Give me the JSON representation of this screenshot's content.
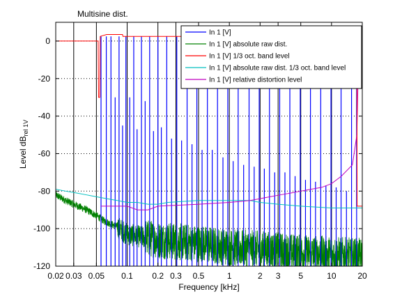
{
  "chart_data": {
    "type": "line",
    "title": "Multisine dist.",
    "xlabel": "Frequency [kHz]",
    "ylabel_main": "Level dB",
    "ylabel_sub": "rel 1V",
    "xscale": "log",
    "xlim": [
      0.02,
      20
    ],
    "ylim": [
      -120,
      10
    ],
    "grid": true,
    "legend_position": "top-right",
    "x_ticks": [
      {
        "value": 0.02,
        "label": "0.02"
      },
      {
        "value": 0.03,
        "label": "0.03"
      },
      {
        "value": 0.05,
        "label": "0.05"
      },
      {
        "value": 0.1,
        "label": "0.1"
      },
      {
        "value": 0.2,
        "label": "0.2"
      },
      {
        "value": 0.3,
        "label": "0.3"
      },
      {
        "value": 0.5,
        "label": "0.5"
      },
      {
        "value": 1,
        "label": "1"
      },
      {
        "value": 2,
        "label": "2"
      },
      {
        "value": 3,
        "label": "3"
      },
      {
        "value": 5,
        "label": "5"
      },
      {
        "value": 10,
        "label": "10"
      },
      {
        "value": 20,
        "label": "20"
      }
    ],
    "y_ticks": [
      {
        "value": 0,
        "label": "0"
      },
      {
        "value": -20,
        "label": "-20"
      },
      {
        "value": -40,
        "label": "-40"
      },
      {
        "value": -60,
        "label": "-60"
      },
      {
        "value": -80,
        "label": "-80"
      },
      {
        "value": -100,
        "label": "-100"
      },
      {
        "value": -120,
        "label": "-120"
      }
    ],
    "series": [
      {
        "name": "In 1 [V]",
        "color": "#0000ff",
        "kind": "spikes",
        "baseline": -120,
        "points": [
          [
            0.0555,
            2.5
          ],
          [
            0.0625,
            2.5
          ],
          [
            0.0694,
            2.5
          ],
          [
            0.0763,
            -30
          ],
          [
            0.0833,
            2.5
          ],
          [
            0.0902,
            -45
          ],
          [
            0.0972,
            2.5
          ],
          [
            0.106,
            -30
          ],
          [
            0.116,
            2.5
          ],
          [
            0.125,
            -47
          ],
          [
            0.138,
            2.5
          ],
          [
            0.15,
            -32
          ],
          [
            0.166,
            2.5
          ],
          [
            0.181,
            -48
          ],
          [
            0.2,
            2.5
          ],
          [
            0.216,
            -46
          ],
          [
            0.244,
            2.5
          ],
          [
            0.272,
            -52
          ],
          [
            0.306,
            2.5
          ],
          [
            0.341,
            -53
          ],
          [
            0.386,
            2.5
          ],
          [
            0.431,
            -55
          ],
          [
            0.481,
            2.5
          ],
          [
            0.541,
            -58
          ],
          [
            0.61,
            2.5
          ],
          [
            0.68,
            -58
          ],
          [
            0.766,
            2.5
          ],
          [
            0.866,
            -62
          ],
          [
            0.966,
            2.5
          ],
          [
            1.09,
            -64
          ],
          [
            1.22,
            2.5
          ],
          [
            1.38,
            -66
          ],
          [
            1.56,
            2.5
          ],
          [
            1.75,
            -67
          ],
          [
            1.96,
            2.5
          ],
          [
            2.2,
            -68
          ],
          [
            2.47,
            2.5
          ],
          [
            2.78,
            -70
          ],
          [
            3.11,
            2.5
          ],
          [
            3.5,
            -70
          ],
          [
            3.91,
            2.5
          ],
          [
            4.4,
            -72
          ],
          [
            4.94,
            2.5
          ],
          [
            5.56,
            -74
          ],
          [
            6.22,
            2.5
          ],
          [
            6.97,
            -75
          ],
          [
            7.84,
            2.5
          ],
          [
            8.81,
            -77
          ],
          [
            9.88,
            2.5
          ],
          [
            11.1,
            -78
          ],
          [
            12.4,
            2.5
          ],
          [
            14.0,
            -80
          ],
          [
            15.7,
            2.5
          ],
          [
            17.6,
            2.5
          ]
        ]
      },
      {
        "name": "In 1 [V] absolute raw dist.",
        "color": "#008000",
        "kind": "noise",
        "anchors": [
          [
            0.02,
            -82
          ],
          [
            0.025,
            -85
          ],
          [
            0.03,
            -87
          ],
          [
            0.04,
            -90
          ],
          [
            0.05,
            -93
          ],
          [
            0.06,
            -96
          ],
          [
            0.08,
            -99
          ],
          [
            0.1,
            -103
          ],
          [
            0.2,
            -106
          ],
          [
            0.5,
            -108
          ],
          [
            1,
            -110
          ],
          [
            2,
            -111
          ],
          [
            5,
            -113
          ],
          [
            10,
            -114
          ],
          [
            20,
            -115
          ]
        ]
      },
      {
        "name": "In 1 [V] 1/3 oct. band level",
        "color": "#ff0000",
        "kind": "line",
        "points": [
          [
            0.02,
            0
          ],
          [
            0.052,
            0
          ],
          [
            0.0525,
            -30
          ],
          [
            0.054,
            -30
          ],
          [
            0.0545,
            2.5
          ],
          [
            0.063,
            3.5
          ],
          [
            0.09,
            3.5
          ],
          [
            0.091,
            2.5
          ],
          [
            1,
            2.5
          ],
          [
            5,
            2.7
          ],
          [
            17.7,
            2.7
          ],
          [
            17.8,
            -88
          ],
          [
            20,
            -88
          ]
        ]
      },
      {
        "name": "In 1 [V] absolute raw dist. 1/3 oct. band level",
        "color": "#00bfbf",
        "kind": "line",
        "points": [
          [
            0.02,
            -79
          ],
          [
            0.025,
            -80
          ],
          [
            0.032,
            -81
          ],
          [
            0.04,
            -82
          ],
          [
            0.05,
            -83
          ],
          [
            0.063,
            -84
          ],
          [
            0.08,
            -85
          ],
          [
            0.1,
            -86
          ],
          [
            0.126,
            -86
          ],
          [
            0.16,
            -87
          ],
          [
            0.2,
            -87
          ],
          [
            0.25,
            -86
          ],
          [
            0.5,
            -85
          ],
          [
            1,
            -85
          ],
          [
            1.6,
            -85
          ],
          [
            2,
            -86
          ],
          [
            3,
            -87
          ],
          [
            5,
            -88
          ],
          [
            10,
            -89
          ],
          [
            20,
            -89
          ]
        ]
      },
      {
        "name": "In 1 [V] relative distortion level",
        "color": "#bf00bf",
        "kind": "line",
        "points": [
          [
            0.0555,
            -88
          ],
          [
            0.1,
            -88
          ],
          [
            0.126,
            -90
          ],
          [
            0.16,
            -90
          ],
          [
            0.2,
            -88
          ],
          [
            0.5,
            -87
          ],
          [
            1,
            -86
          ],
          [
            1.6,
            -85
          ],
          [
            2,
            -84
          ],
          [
            2.5,
            -83
          ],
          [
            3.15,
            -82
          ],
          [
            4,
            -81
          ],
          [
            5,
            -80
          ],
          [
            6.3,
            -79
          ],
          [
            8,
            -78
          ],
          [
            10,
            -76
          ],
          [
            12.5,
            -72
          ],
          [
            16,
            -66
          ],
          [
            17.7,
            -50
          ],
          [
            18.2,
            -20
          ],
          [
            18.4,
            -10
          ],
          [
            18.6,
            2.5
          ]
        ]
      }
    ]
  }
}
